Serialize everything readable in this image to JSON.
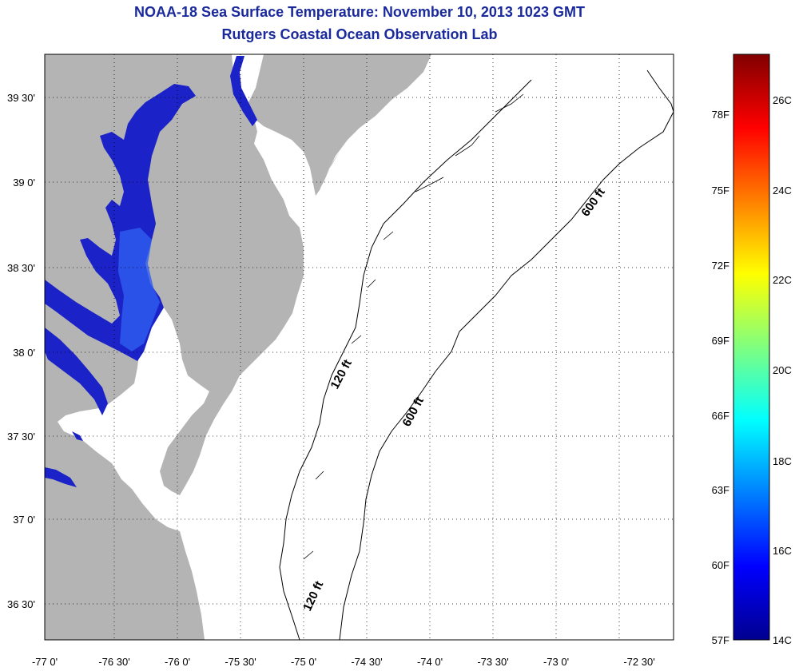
{
  "title_line1": "NOAA-18 Sea Surface Temperature:  November 10, 2013 1023 GMT",
  "title_line2": "Rutgers Coastal Ocean Observation Lab",
  "map": {
    "lat_labels": [
      "39 30'",
      "39 0'",
      "38 30'",
      "38 0'",
      "37 30'",
      "37 0'",
      "36 30'"
    ],
    "lon_labels": [
      "-77 0'",
      "-76 30'",
      "-76 0'",
      "-75 30'",
      "-75 0'",
      "-74 30'",
      "-74 0'",
      "-73 30'",
      "-73 0'",
      "-72 30'"
    ],
    "contour_labels": {
      "c120_upper": "120 ft",
      "c120_lower": "120 ft",
      "c600_lower": "600 ft",
      "c600_upper": "600 ft"
    },
    "colors": {
      "land": "#b4b4b4",
      "bay_water": "#1a22c8",
      "bay_water_warm": "#2f5ff0",
      "ocean_no_data": "#ffffff",
      "grid": "#000000"
    }
  },
  "colorbar": {
    "fahrenheit_labels": [
      "78F",
      "75F",
      "72F",
      "69F",
      "66F",
      "63F",
      "60F",
      "57F"
    ],
    "celsius_labels": [
      "26C",
      "24C",
      "22C",
      "20C",
      "18C",
      "16C",
      "14C"
    ],
    "min_c": 14,
    "max_c": 27.3,
    "colormap": "jet"
  }
}
